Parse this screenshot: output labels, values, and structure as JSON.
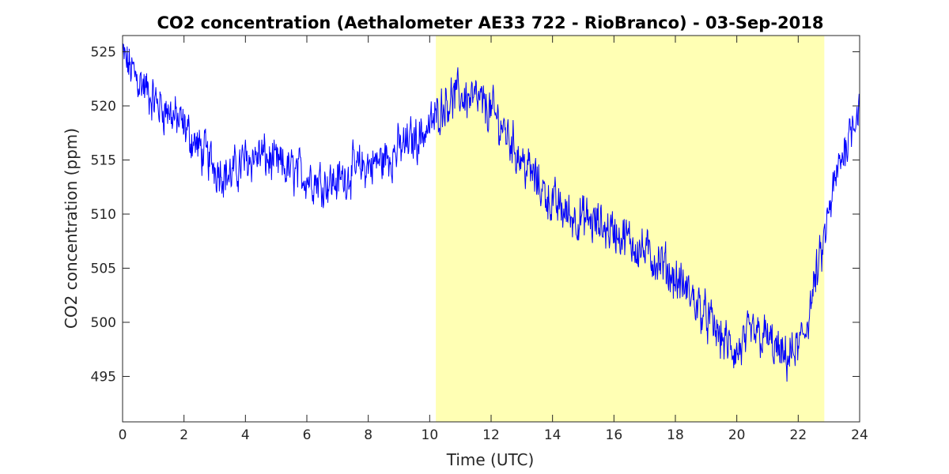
{
  "chart_data": {
    "type": "line",
    "title": "CO2 concentration (Aethalometer AE33 722 - RioBranco) - 03-Sep-2018",
    "xlabel": "Time (UTC)",
    "ylabel": "CO2 concentration (ppm)",
    "xlim": [
      0,
      24
    ],
    "ylim": [
      490.8,
      526.5
    ],
    "xticks": [
      0,
      2,
      4,
      6,
      8,
      10,
      12,
      14,
      16,
      18,
      20,
      22,
      24
    ],
    "yticks": [
      495,
      500,
      505,
      510,
      515,
      520,
      525
    ],
    "grid": false,
    "line_color": "#0000ff",
    "shaded_region": {
      "x": [
        10.2,
        22.85
      ],
      "color": "#ffffb4"
    },
    "series": [
      {
        "x": [
          0,
          0.5,
          1,
          1.5,
          2,
          2.5,
          3,
          3.5,
          4,
          4.5,
          5,
          5.5,
          6,
          6.5,
          7,
          7.5,
          8,
          8.5,
          9,
          9.5,
          10,
          10.5,
          11,
          11.5,
          12,
          12.5,
          13,
          13.5,
          14,
          14.5,
          15,
          15.5,
          16,
          16.5,
          17,
          17.5,
          18,
          18.5,
          19,
          19.5,
          20,
          20.5,
          21,
          21.5,
          22,
          22.25,
          22.5,
          22.75,
          23,
          23.25,
          23.5,
          23.75,
          24
        ],
        "values": [
          524.5,
          522.5,
          520.5,
          519.5,
          518,
          516,
          514.5,
          513.5,
          515,
          515.5,
          514.5,
          514,
          513.5,
          513,
          513,
          514,
          514.5,
          515,
          516,
          517,
          518,
          520.5,
          521,
          520.5,
          519.5,
          517.5,
          515,
          513,
          511,
          510,
          509.5,
          509,
          508.5,
          507.5,
          506.5,
          505.5,
          504,
          502.5,
          500.5,
          498.5,
          497,
          499,
          498.5,
          496.5,
          497.5,
          499.5,
          503,
          506,
          510,
          513.5,
          516,
          518.5,
          520
        ]
      }
    ]
  }
}
